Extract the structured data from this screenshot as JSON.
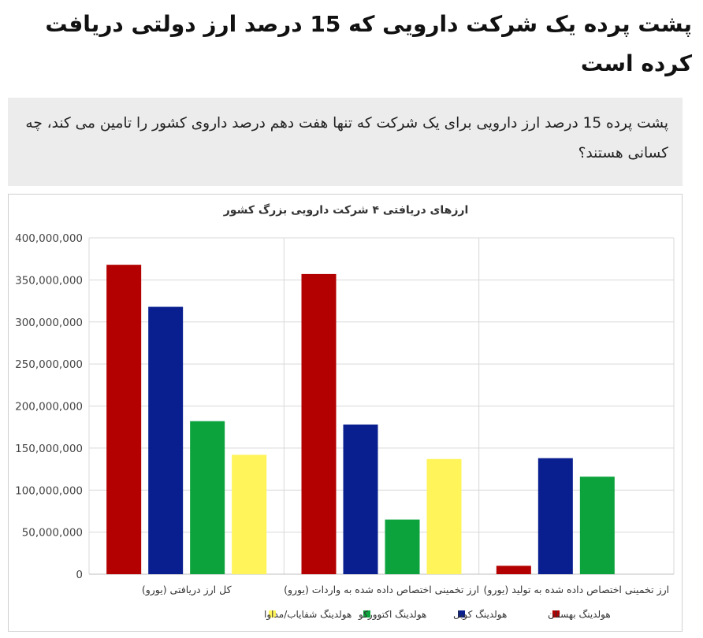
{
  "article": {
    "headline": "پشت پرده یک شرکت دارویی که 15 درصد ارز دولتی دریافت کرده است",
    "lead": "پشت پرده 15 درصد ارز دارویی برای یک شرکت که تنها هفت دهم درصد داروی کشور را تامین می کند، چه کسانی هستند؟"
  },
  "chart_data": {
    "type": "bar",
    "title": "ارزهای دریافتی ۴ شرکت دارویی بزرگ کشور",
    "categories": [
      "کل ارز دریافتی (یورو)",
      "ارز تخمینی اختصاص داده شده به واردات (یورو)",
      "ارز تخمینی اختصاص داده شده به تولید (یورو)"
    ],
    "series": [
      {
        "name": "هولدینگ بهستان",
        "color": "#b30000",
        "values": [
          368000000,
          357000000,
          10000000
        ]
      },
      {
        "name": "هولدینگ کوبل",
        "color": "#0a1f8f",
        "values": [
          318000000,
          178000000,
          138000000
        ]
      },
      {
        "name": "هولدینگ اکتوورکو",
        "color": "#0ca33c",
        "values": [
          182000000,
          65000000,
          116000000
        ]
      },
      {
        "name": "هولدینگ شفایاب/مداوا",
        "color": "#fff45a",
        "values": [
          142000000,
          137000000,
          0
        ]
      }
    ],
    "ylim": [
      0,
      400000000
    ],
    "y_ticks": [
      "0",
      "50,000,000",
      "100,000,000",
      "150,000,000",
      "200,000,000",
      "250,000,000",
      "300,000,000",
      "350,000,000",
      "400,000,000"
    ],
    "grid": true,
    "legend": "bottom"
  }
}
